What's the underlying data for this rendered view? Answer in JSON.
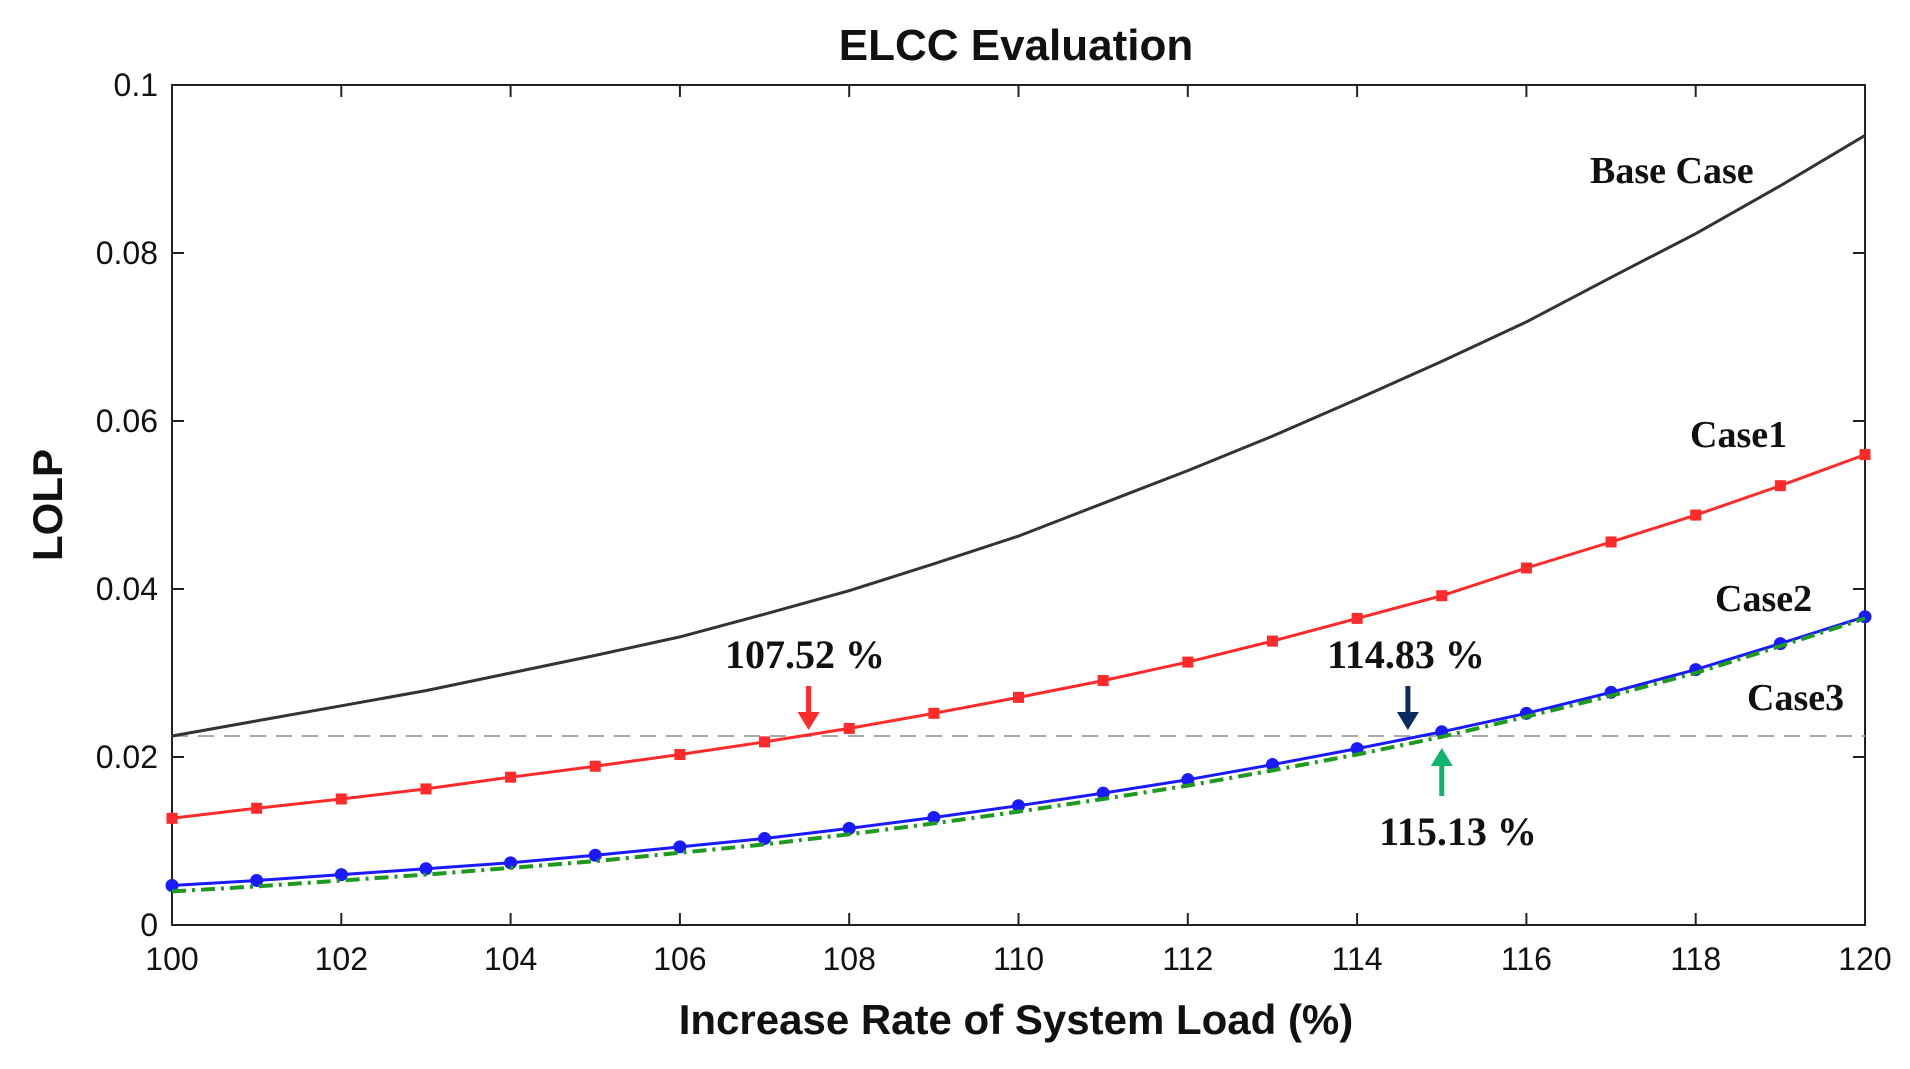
{
  "chart_data": {
    "type": "line",
    "title": "ELCC Evaluation",
    "xlabel": "Increase Rate of System Load (%)",
    "ylabel": "LOLP",
    "xlim": [
      100,
      120
    ],
    "ylim": [
      0,
      0.1
    ],
    "xticks": [
      100,
      102,
      104,
      106,
      108,
      110,
      112,
      114,
      116,
      118,
      120
    ],
    "xtick_labels": [
      "100",
      "102",
      "104",
      "106",
      "108",
      "110",
      "112",
      "114",
      "116",
      "118",
      "120"
    ],
    "yticks": [
      0,
      0.02,
      0.04,
      0.06,
      0.08,
      0.1
    ],
    "ytick_labels": [
      "0",
      "0.02",
      "0.04",
      "0.06",
      "0.08",
      "0.1"
    ],
    "grid": false,
    "x": [
      100,
      101,
      102,
      103,
      104,
      105,
      106,
      107,
      108,
      109,
      110,
      111,
      112,
      113,
      114,
      115,
      116,
      117,
      118,
      119,
      120
    ],
    "series": [
      {
        "name": "Base Case",
        "label": "Base Case",
        "color": "#333333",
        "style": "solid",
        "marker": "none",
        "values": [
          0.0225,
          0.0243,
          0.0261,
          0.0279,
          0.03,
          0.0321,
          0.0343,
          0.037,
          0.0398,
          0.043,
          0.0463,
          0.0502,
          0.0541,
          0.0582,
          0.0626,
          0.0671,
          0.0718,
          0.0771,
          0.0823,
          0.088,
          0.094
        ]
      },
      {
        "name": "Case1",
        "label": "Case1",
        "color": "#ff2a2a",
        "style": "solid",
        "marker": "square",
        "values": [
          0.0127,
          0.0139,
          0.015,
          0.0162,
          0.0176,
          0.0189,
          0.0203,
          0.0218,
          0.0234,
          0.0252,
          0.0271,
          0.0291,
          0.0313,
          0.0338,
          0.0365,
          0.0392,
          0.0425,
          0.0456,
          0.0488,
          0.0523,
          0.056
        ]
      },
      {
        "name": "Case2",
        "label": "Case2",
        "color": "#1a1aff",
        "style": "solid",
        "marker": "circle",
        "values": [
          0.0047,
          0.0053,
          0.006,
          0.0067,
          0.0074,
          0.0083,
          0.0093,
          0.0103,
          0.0115,
          0.0128,
          0.0142,
          0.0157,
          0.0173,
          0.0191,
          0.021,
          0.023,
          0.0252,
          0.0277,
          0.0304,
          0.0335,
          0.0367
        ]
      },
      {
        "name": "Case3",
        "label": "Case3",
        "color": "#1e9a1e",
        "style": "dashdot",
        "marker": "none",
        "values": [
          0.004,
          0.0046,
          0.0053,
          0.006,
          0.0068,
          0.0076,
          0.0086,
          0.0096,
          0.0108,
          0.0121,
          0.0135,
          0.015,
          0.0166,
          0.0184,
          0.0203,
          0.0224,
          0.0248,
          0.0273,
          0.03,
          0.0332,
          0.0365
        ]
      }
    ],
    "reference_line": {
      "y": 0.0225,
      "color": "#aaaaaa",
      "style": "dashed"
    },
    "annotations": [
      {
        "text": "107.52 %",
        "x": 107.52,
        "y": 0.0225,
        "arrow": "down",
        "color": "#ff2a2a"
      },
      {
        "text": "114.83 %",
        "x": 114.6,
        "y": 0.0225,
        "arrow": "down",
        "color": "#0b2a5e"
      },
      {
        "text": "115.13 %",
        "x": 115.0,
        "y": 0.0225,
        "arrow": "up",
        "color": "#10b46a"
      }
    ]
  }
}
